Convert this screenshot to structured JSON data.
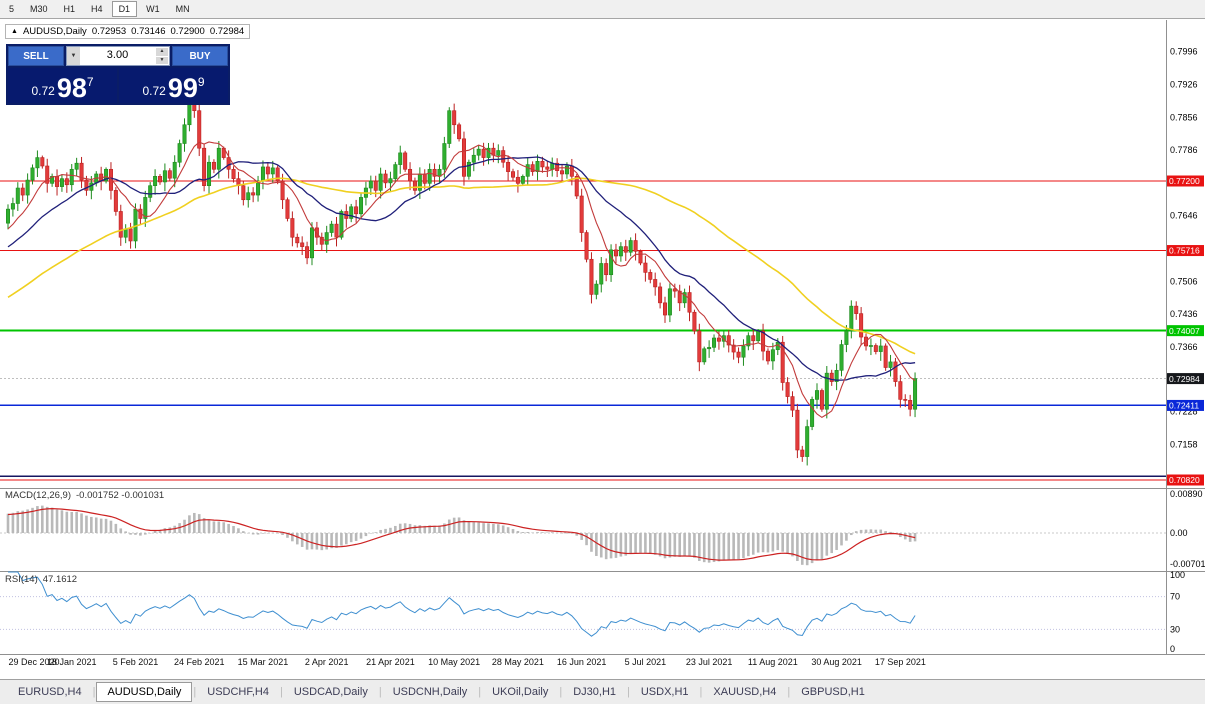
{
  "window": {
    "toolbar_periods": [
      {
        "label": "5",
        "active": false
      },
      {
        "label": "M30",
        "active": false
      },
      {
        "label": "H1",
        "active": false
      },
      {
        "label": "H4",
        "active": false
      },
      {
        "label": "D1",
        "active": true
      },
      {
        "label": "W1",
        "active": false
      },
      {
        "label": "MN",
        "active": false
      }
    ]
  },
  "chart_title": {
    "toggle_icon": "▲",
    "symbol": "AUDUSD,Daily",
    "open": "0.72953",
    "high": "0.73146",
    "low": "0.72900",
    "close": "0.72984"
  },
  "trade_panel": {
    "sell_label": "SELL",
    "buy_label": "BUY",
    "volume": "3.00",
    "dropdown_icon": "▼",
    "spin_up_icon": "▲",
    "spin_down_icon": "▼",
    "sell_price": {
      "small": "0.72",
      "big": "98",
      "sup": "7"
    },
    "buy_price": {
      "small": "0.72",
      "big": "99",
      "sup": "9"
    }
  },
  "indicators": {
    "macd_label": "MACD(12,26,9)",
    "macd_values": "-0.001752 -0.001031",
    "rsi_label": "RSI(14)",
    "rsi_value": "47.1612"
  },
  "tabs": [
    {
      "label": "EURUSD,H4",
      "active": false
    },
    {
      "label": "AUDUSD,Daily",
      "active": true
    },
    {
      "label": "USDCHF,H4",
      "active": false
    },
    {
      "label": "USDCAD,Daily",
      "active": false
    },
    {
      "label": "USDCNH,Daily",
      "active": false
    },
    {
      "label": "UKOil,Daily",
      "active": false
    },
    {
      "label": "DJ30,H1",
      "active": false
    },
    {
      "label": "USDX,H1",
      "active": false
    },
    {
      "label": "XAUUSD,H4",
      "active": false
    },
    {
      "label": "GBPUSD,H1",
      "active": false
    }
  ],
  "colors": {
    "candle_up": "#2fae2f",
    "candle_up_border": "#1d8a1d",
    "candle_down": "#e23b3b",
    "candle_down_border": "#bb1f1f",
    "macd_hist": "#b9b9b9",
    "macd_signal": "#cc2222",
    "rsi_line": "#3f8fd0",
    "panel_navy": "#0a1d66",
    "button_blue": "#3a6bc9",
    "badge_black": "#16181c",
    "line_red": "#e81212",
    "line_green": "#00c400",
    "line_blue": "#0a28d8",
    "line_navy": "#151560"
  },
  "chart_data": {
    "type": "candlestick",
    "symbol": "AUDUSD",
    "timeframe": "Daily",
    "title": "AUDUSD,Daily 0.72953 0.73146 0.72900 0.72984",
    "current_price": "0.72984",
    "candles_per_label": 13,
    "x_axis_dates": [
      "29 Dec 2020",
      "18 Jan 2021",
      "5 Feb 2021",
      "24 Feb 2021",
      "15 Mar 2021",
      "2 Apr 2021",
      "21 Apr 2021",
      "10 May 2021",
      "28 May 2021",
      "16 Jun 2021",
      "5 Jul 2021",
      "23 Jul 2021",
      "11 Aug 2021",
      "30 Aug 2021",
      "17 Sep 2021"
    ],
    "price_axis_ticks": [
      "0.7996",
      "0.7926",
      "0.7856",
      "0.7786",
      "0.7646",
      "0.7506",
      "0.7436",
      "0.7366",
      "0.7228",
      "0.7158"
    ],
    "first_open": 0.763,
    "closes": [
      0.766,
      0.7672,
      0.7705,
      0.769,
      0.7722,
      0.7748,
      0.777,
      0.7752,
      0.7715,
      0.773,
      0.7708,
      0.7725,
      0.7712,
      0.7745,
      0.7758,
      0.7722,
      0.77,
      0.7716,
      0.7735,
      0.772,
      0.7745,
      0.77,
      0.7655,
      0.76,
      0.7618,
      0.7592,
      0.766,
      0.764,
      0.7685,
      0.771,
      0.773,
      0.7718,
      0.7742,
      0.7726,
      0.776,
      0.78,
      0.784,
      0.7895,
      0.787,
      0.779,
      0.771,
      0.776,
      0.7745,
      0.779,
      0.777,
      0.7745,
      0.7725,
      0.771,
      0.768,
      0.7695,
      0.769,
      0.772,
      0.775,
      0.7735,
      0.7748,
      0.772,
      0.768,
      0.764,
      0.76,
      0.7588,
      0.758,
      0.7556,
      0.762,
      0.76,
      0.7585,
      0.761,
      0.7628,
      0.76,
      0.7655,
      0.764,
      0.7665,
      0.765,
      0.7685,
      0.7705,
      0.772,
      0.77,
      0.7735,
      0.7716,
      0.7725,
      0.7755,
      0.778,
      0.7745,
      0.772,
      0.77,
      0.7735,
      0.7715,
      0.7745,
      0.773,
      0.7745,
      0.78,
      0.787,
      0.784,
      0.781,
      0.773,
      0.776,
      0.7775,
      0.7788,
      0.777,
      0.779,
      0.7775,
      0.7785,
      0.776,
      0.774,
      0.7728,
      0.7715,
      0.773,
      0.7755,
      0.774,
      0.7762,
      0.775,
      0.7745,
      0.7758,
      0.7742,
      0.7735,
      0.7752,
      0.773,
      0.7688,
      0.761,
      0.7553,
      0.7478,
      0.75,
      0.7544,
      0.752,
      0.7573,
      0.756,
      0.758,
      0.7568,
      0.7593,
      0.757,
      0.7545,
      0.7525,
      0.751,
      0.7494,
      0.746,
      0.7434,
      0.749,
      0.7485,
      0.746,
      0.7482,
      0.744,
      0.74,
      0.7334,
      0.7362,
      0.7365,
      0.7385,
      0.7378,
      0.739,
      0.737,
      0.7355,
      0.7344,
      0.7368,
      0.739,
      0.7379,
      0.74,
      0.7357,
      0.7336,
      0.736,
      0.7376,
      0.729,
      0.726,
      0.7231,
      0.7146,
      0.7132,
      0.7196,
      0.7254,
      0.7273,
      0.7233,
      0.731,
      0.7292,
      0.7316,
      0.7371,
      0.74,
      0.7453,
      0.7437,
      0.7387,
      0.7368,
      0.7369,
      0.7356,
      0.7368,
      0.7322,
      0.7334,
      0.7292,
      0.7254,
      0.7252,
      0.7233,
      0.72984
    ],
    "hlines": [
      {
        "price": 0.772,
        "label": "0.77200",
        "color": "#e81212",
        "width": 1
      },
      {
        "price": 0.75716,
        "label": "0.75716",
        "color": "#e81212",
        "width": 1
      },
      {
        "price": 0.74007,
        "label": "0.74007",
        "color": "#00c400",
        "width": 2
      },
      {
        "price": 0.72411,
        "label": "0.72411",
        "color": "#0a28d8",
        "width": 1.4
      },
      {
        "price": 0.709,
        "label": "",
        "color": "#151560",
        "width": 1.4
      },
      {
        "price": 0.7082,
        "label": "0.70820",
        "color": "#e81212",
        "width": 1.2
      }
    ],
    "moving_averages": [
      {
        "period": 55,
        "color": "#f0d020",
        "width": 1.6
      },
      {
        "period": 20,
        "color": "#20207a",
        "width": 1.3
      },
      {
        "period": 8,
        "color": "#c23b3b",
        "width": 1.1
      }
    ],
    "macd": {
      "label": "MACD(12,26,9)",
      "values": "-0.001752 -0.001031",
      "axis_labels": [
        "0.00890",
        "0.00",
        "-0.00701"
      ],
      "fast": 12,
      "slow": 26,
      "signal": 9
    },
    "rsi": {
      "label": "RSI(14)",
      "value": "47.1612",
      "axis_labels": [
        "100",
        "70",
        "30",
        "0"
      ],
      "period": 14,
      "levels": [
        70,
        30
      ]
    }
  }
}
